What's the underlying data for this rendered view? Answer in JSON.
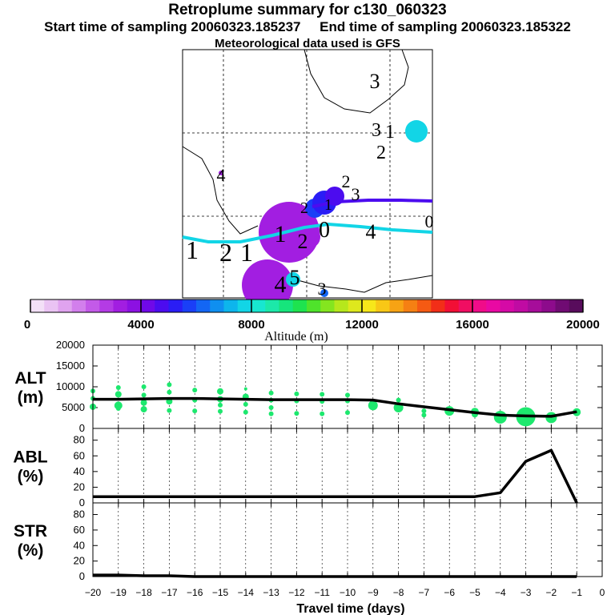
{
  "header": {
    "title": "Retroplume summary for c130_060323",
    "start_time": "Start time of sampling 20060323.185237",
    "end_time": "End time of sampling 20060323.185322",
    "met_data": "Meteorological data used is GFS"
  },
  "map": {
    "labels": [
      "3",
      "3",
      "1",
      "2",
      "4",
      "2",
      "3",
      "2",
      "1",
      "0",
      "4",
      "1",
      "2",
      "1",
      "1",
      "2",
      "4",
      "5",
      "3",
      "0"
    ]
  },
  "colorbar": {
    "title": "Altitude (m)",
    "ticks": [
      "0",
      "4000",
      "8000",
      "12000",
      "16000",
      "20000"
    ],
    "colors": [
      "#f3e0f7",
      "#eac3f3",
      "#e0a3ef",
      "#d27fec",
      "#c35ae8",
      "#b43be5",
      "#a21ee1",
      "#8c11e2",
      "#7009e8",
      "#4c0cef",
      "#2a1df5",
      "#1a3ff7",
      "#1366f4",
      "#0f8ff0",
      "#0db5ec",
      "#12d5e6",
      "#18e6d0",
      "#1ce8a9",
      "#16e57c",
      "#1ee34f",
      "#4fe32b",
      "#84e51f",
      "#b6e71c",
      "#dee81d",
      "#f7e71a",
      "#f8c716",
      "#f7a314",
      "#f58013",
      "#f55a13",
      "#f22e18",
      "#f20f35",
      "#f00e62",
      "#f00c89",
      "#e909a3",
      "#d50aa6",
      "#c00ba3",
      "#a60d9a",
      "#8d0b8c",
      "#700b73",
      "#580c5c"
    ]
  },
  "chart_data": [
    {
      "type": "line",
      "name": "ALT",
      "ylabel": "ALT\n(m)",
      "ylabel_lines": [
        "ALT",
        "(m)"
      ],
      "yticks": [
        "0",
        "5000",
        "10000",
        "15000",
        "20000"
      ],
      "ylim": [
        0,
        20000
      ],
      "xlim": [
        -20,
        0
      ],
      "x": [
        -20,
        -19,
        -18,
        -17,
        -16,
        -15,
        -14,
        -13,
        -12,
        -11,
        -10,
        -9,
        -8,
        -7,
        -6,
        -5,
        -4,
        -3,
        -2,
        -1
      ],
      "values": [
        7000,
        7000,
        7100,
        7200,
        7200,
        7100,
        7000,
        6900,
        6900,
        6900,
        6900,
        6800,
        5900,
        5200,
        4500,
        3800,
        3200,
        3000,
        2900,
        4000
      ],
      "dots": [
        [
          -20,
          9000,
          3
        ],
        [
          -20,
          7200,
          3
        ],
        [
          -20,
          5200,
          4
        ],
        [
          -19,
          9800,
          3
        ],
        [
          -19,
          8200,
          4
        ],
        [
          -19,
          5500,
          5
        ],
        [
          -19,
          4800,
          3
        ],
        [
          -18,
          10000,
          3
        ],
        [
          -18,
          8000,
          3
        ],
        [
          -18,
          6200,
          4
        ],
        [
          -18,
          4600,
          4
        ],
        [
          -17,
          10500,
          3
        ],
        [
          -17,
          8700,
          3
        ],
        [
          -17,
          6500,
          4
        ],
        [
          -17,
          4300,
          3
        ],
        [
          -16,
          9200,
          3
        ],
        [
          -16,
          6800,
          3
        ],
        [
          -16,
          4200,
          3
        ],
        [
          -15,
          8900,
          4
        ],
        [
          -15,
          7000,
          4
        ],
        [
          -15,
          5600,
          3
        ],
        [
          -15,
          4100,
          3
        ],
        [
          -14,
          9500,
          2
        ],
        [
          -14,
          7600,
          4
        ],
        [
          -14,
          5800,
          3
        ],
        [
          -14,
          3900,
          3
        ],
        [
          -13,
          8500,
          3
        ],
        [
          -13,
          6800,
          3
        ],
        [
          -13,
          5000,
          3
        ],
        [
          -13,
          3500,
          3
        ],
        [
          -12,
          8300,
          3
        ],
        [
          -12,
          6600,
          3
        ],
        [
          -12,
          3600,
          3
        ],
        [
          -11,
          8200,
          3
        ],
        [
          -11,
          6500,
          3
        ],
        [
          -11,
          3500,
          3
        ],
        [
          -10,
          8000,
          3
        ],
        [
          -10,
          6600,
          3
        ],
        [
          -10,
          3800,
          3
        ],
        [
          -9,
          6200,
          4
        ],
        [
          -9,
          5500,
          6
        ],
        [
          -8,
          6800,
          3
        ],
        [
          -8,
          5000,
          6
        ],
        [
          -7,
          4200,
          3
        ],
        [
          -7,
          3200,
          3
        ],
        [
          -6,
          4200,
          6
        ],
        [
          -5,
          4000,
          5
        ],
        [
          -5,
          3400,
          4
        ],
        [
          -4,
          2700,
          8
        ],
        [
          -3,
          2800,
          12
        ],
        [
          -2,
          2600,
          7
        ],
        [
          -1,
          3900,
          5
        ]
      ]
    },
    {
      "type": "line",
      "name": "ABL",
      "ylabel_lines": [
        "ABL",
        "(%)"
      ],
      "yticks": [
        "0",
        "20",
        "40",
        "60",
        "80"
      ],
      "ylim": [
        0,
        95
      ],
      "xlim": [
        -20,
        0
      ],
      "x": [
        -20,
        -19,
        -18,
        -17,
        -16,
        -15,
        -14,
        -13,
        -12,
        -11,
        -10,
        -9,
        -8,
        -7,
        -6,
        -5,
        -4,
        -3,
        -2,
        -1
      ],
      "values": [
        8,
        8,
        8,
        8,
        8,
        8,
        8,
        8,
        8,
        8,
        8,
        8,
        8,
        8,
        8,
        8,
        13,
        53,
        67,
        0
      ]
    },
    {
      "type": "line",
      "name": "STR",
      "ylabel_lines": [
        "STR",
        "(%)"
      ],
      "yticks": [
        "0",
        "20",
        "40",
        "60",
        "80"
      ],
      "ylim": [
        0,
        95
      ],
      "xlim": [
        -20,
        0
      ],
      "x": [
        -20,
        -19,
        -18,
        -17,
        -16,
        -15,
        -14,
        -13,
        -12,
        -11,
        -10,
        -9,
        -8,
        -7,
        -6,
        -5,
        -4,
        -3,
        -2,
        -1
      ],
      "values": [
        2,
        2,
        1,
        1,
        0,
        0,
        0,
        0,
        0,
        0,
        0,
        0,
        0,
        0,
        0,
        0,
        0,
        0,
        0,
        0
      ]
    }
  ],
  "xaxis": {
    "title": "Travel time (days)",
    "ticks": [
      "−20",
      "−19",
      "−18",
      "−17",
      "−16",
      "−15",
      "−14",
      "−13",
      "−12",
      "−11",
      "−10",
      "−9",
      "−8",
      "−7",
      "−6",
      "−5",
      "−4",
      "−3",
      "−2",
      "−1",
      "0"
    ]
  }
}
